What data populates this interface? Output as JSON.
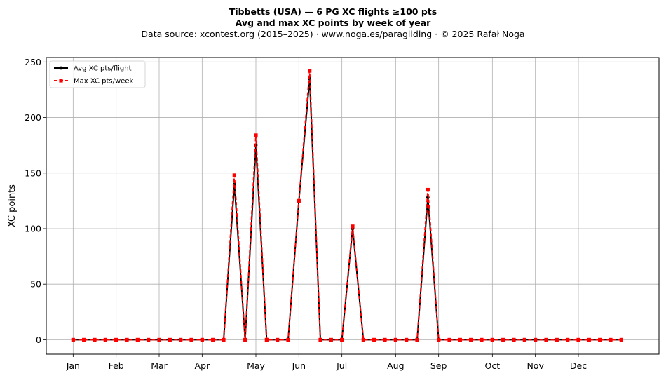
{
  "chart_data": {
    "type": "line",
    "title": "Tibbetts (USA)  —  6 PG XC flights ≥100 pts",
    "title2": "Avg and max XC points by week of year",
    "subtitle": "Data source: xcontest.org (2015–2025)  ·  www.noga.es/paragliding  ·  © 2025 Rafał Noga",
    "xlabel": "",
    "ylabel": "XC points",
    "ylim": [
      -13,
      254
    ],
    "xlim": [
      -2.5,
      54.5
    ],
    "yticks": [
      0,
      50,
      100,
      150,
      200,
      250
    ],
    "grid": true,
    "legend_position": "top-left",
    "month_ticks": [
      {
        "label": "Jan",
        "x": 0
      },
      {
        "label": "Feb",
        "x": 4
      },
      {
        "label": "Mar",
        "x": 8
      },
      {
        "label": "Apr",
        "x": 12
      },
      {
        "label": "May",
        "x": 17
      },
      {
        "label": "Jun",
        "x": 21
      },
      {
        "label": "Jul",
        "x": 25
      },
      {
        "label": "Aug",
        "x": 30
      },
      {
        "label": "Sep",
        "x": 34
      },
      {
        "label": "Oct",
        "x": 39
      },
      {
        "label": "Nov",
        "x": 43
      },
      {
        "label": "Dec",
        "x": 47
      }
    ],
    "x": [
      0,
      1,
      2,
      3,
      4,
      5,
      6,
      7,
      8,
      9,
      10,
      11,
      12,
      13,
      14,
      15,
      16,
      17,
      18,
      19,
      20,
      21,
      22,
      23,
      24,
      25,
      26,
      27,
      28,
      29,
      30,
      31,
      32,
      33,
      34,
      35,
      36,
      37,
      38,
      39,
      40,
      41,
      42,
      43,
      44,
      45,
      46,
      47,
      48,
      49,
      50,
      51
    ],
    "series": [
      {
        "name": "Avg XC pts/flight",
        "color": "#000000",
        "style": "solid",
        "marker": "circle",
        "values": [
          0,
          0,
          0,
          0,
          0,
          0,
          0,
          0,
          0,
          0,
          0,
          0,
          0,
          0,
          0,
          140,
          0,
          175,
          0,
          0,
          0,
          125,
          235,
          0,
          0,
          0,
          100,
          0,
          0,
          0,
          0,
          0,
          0,
          128,
          0,
          0,
          0,
          0,
          0,
          0,
          0,
          0,
          0,
          0,
          0,
          0,
          0,
          0,
          0,
          0,
          0,
          0
        ]
      },
      {
        "name": "Max XC pts/week",
        "color": "#ff0000",
        "style": "dashed",
        "marker": "square",
        "values": [
          0,
          0,
          0,
          0,
          0,
          0,
          0,
          0,
          0,
          0,
          0,
          0,
          0,
          0,
          0,
          148,
          0,
          184,
          0,
          0,
          0,
          125,
          242,
          0,
          0,
          0,
          102,
          0,
          0,
          0,
          0,
          0,
          0,
          135,
          0,
          0,
          0,
          0,
          0,
          0,
          0,
          0,
          0,
          0,
          0,
          0,
          0,
          0,
          0,
          0,
          0,
          0
        ]
      }
    ]
  }
}
